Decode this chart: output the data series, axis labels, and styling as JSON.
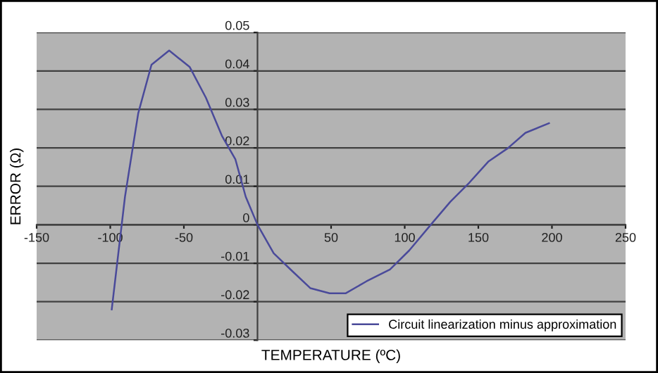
{
  "chart_data": {
    "type": "line",
    "xlabel": "TEMPERATURE (ºC)",
    "ylabel": "ERROR (Ω)",
    "xlim": [
      -150,
      250
    ],
    "xticks": [
      -150,
      -100,
      -50,
      50,
      100,
      150,
      200,
      250
    ],
    "ylim": [
      -0.03,
      0.05
    ],
    "yticks": [
      -0.03,
      -0.02,
      -0.01,
      0,
      0.01,
      0.02,
      0.03,
      0.04,
      0.05
    ],
    "grid": "y",
    "legend": "bottom right",
    "marker": "none",
    "line_style": "solid",
    "series": [
      {
        "name": "Circuit linearization minus approximation",
        "color": "#4a4a9a",
        "x": [
          -99,
          -90,
          -81,
          -72,
          -60,
          -46,
          -35,
          -24,
          -15,
          -8,
          0,
          11,
          23.5,
          36,
          49,
          60,
          74,
          90,
          103,
          119,
          131,
          144,
          157,
          170,
          182,
          198
        ],
        "values": [
          -0.022,
          0.0073,
          0.029,
          0.0416,
          0.0453,
          0.041,
          0.033,
          0.023,
          0.017,
          0.0073,
          0,
          -0.0074,
          -0.012,
          -0.0165,
          -0.0178,
          -0.0178,
          -0.0147,
          -0.0116,
          -0.0067,
          0.0006,
          0.006,
          0.011,
          0.0165,
          0.0199,
          0.0239,
          0.0264
        ]
      }
    ]
  }
}
